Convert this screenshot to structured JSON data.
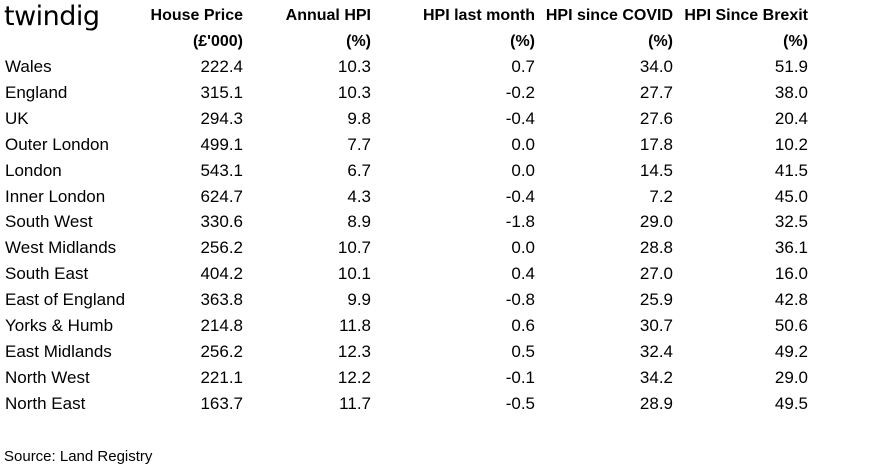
{
  "brand": {
    "logo_text": "twindig"
  },
  "chart_data": {
    "type": "table",
    "headers": [
      {
        "line1": "",
        "line2": ""
      },
      {
        "line1": "House Price",
        "line2": "(£'000)"
      },
      {
        "line1": "Annual HPI",
        "line2": "(%)"
      },
      {
        "line1": "HPI last month",
        "line2": "(%)"
      },
      {
        "line1": "HPI since COVID",
        "line2": "(%)"
      },
      {
        "line1": "HPI Since Brexit",
        "line2": "(%)"
      }
    ],
    "rows": [
      {
        "region": "Wales",
        "house_price": "222.4",
        "annual_hpi": "10.3",
        "hpi_last_month": "0.7",
        "hpi_since_covid": "34.0",
        "hpi_since_brexit": "51.9"
      },
      {
        "region": "England",
        "house_price": "315.1",
        "annual_hpi": "10.3",
        "hpi_last_month": "-0.2",
        "hpi_since_covid": "27.7",
        "hpi_since_brexit": "38.0"
      },
      {
        "region": "UK",
        "house_price": "294.3",
        "annual_hpi": "9.8",
        "hpi_last_month": "-0.4",
        "hpi_since_covid": "27.6",
        "hpi_since_brexit": "20.4"
      },
      {
        "region": "Outer London",
        "house_price": "499.1",
        "annual_hpi": "7.7",
        "hpi_last_month": "0.0",
        "hpi_since_covid": "17.8",
        "hpi_since_brexit": "10.2"
      },
      {
        "region": "London",
        "house_price": "543.1",
        "annual_hpi": "6.7",
        "hpi_last_month": "0.0",
        "hpi_since_covid": "14.5",
        "hpi_since_brexit": "41.5"
      },
      {
        "region": "Inner London",
        "house_price": "624.7",
        "annual_hpi": "4.3",
        "hpi_last_month": "-0.4",
        "hpi_since_covid": "7.2",
        "hpi_since_brexit": "45.0"
      },
      {
        "region": "South West",
        "house_price": "330.6",
        "annual_hpi": "8.9",
        "hpi_last_month": "-1.8",
        "hpi_since_covid": "29.0",
        "hpi_since_brexit": "32.5"
      },
      {
        "region": "West Midlands",
        "house_price": "256.2",
        "annual_hpi": "10.7",
        "hpi_last_month": "0.0",
        "hpi_since_covid": "28.8",
        "hpi_since_brexit": "36.1"
      },
      {
        "region": "South East",
        "house_price": "404.2",
        "annual_hpi": "10.1",
        "hpi_last_month": "0.4",
        "hpi_since_covid": "27.0",
        "hpi_since_brexit": "16.0"
      },
      {
        "region": "East of England",
        "house_price": "363.8",
        "annual_hpi": "9.9",
        "hpi_last_month": "-0.8",
        "hpi_since_covid": "25.9",
        "hpi_since_brexit": "42.8"
      },
      {
        "region": "Yorks & Humb",
        "house_price": "214.8",
        "annual_hpi": "11.8",
        "hpi_last_month": "0.6",
        "hpi_since_covid": "30.7",
        "hpi_since_brexit": "50.6"
      },
      {
        "region": "East Midlands",
        "house_price": "256.2",
        "annual_hpi": "12.3",
        "hpi_last_month": "0.5",
        "hpi_since_covid": "32.4",
        "hpi_since_brexit": "49.2"
      },
      {
        "region": "North West",
        "house_price": "221.1",
        "annual_hpi": "12.2",
        "hpi_last_month": "-0.1",
        "hpi_since_covid": "34.2",
        "hpi_since_brexit": "29.0"
      },
      {
        "region": "North East",
        "house_price": "163.7",
        "annual_hpi": "11.7",
        "hpi_last_month": "-0.5",
        "hpi_since_covid": "28.9",
        "hpi_since_brexit": "49.5"
      }
    ],
    "source": "Source: Land Registry"
  }
}
